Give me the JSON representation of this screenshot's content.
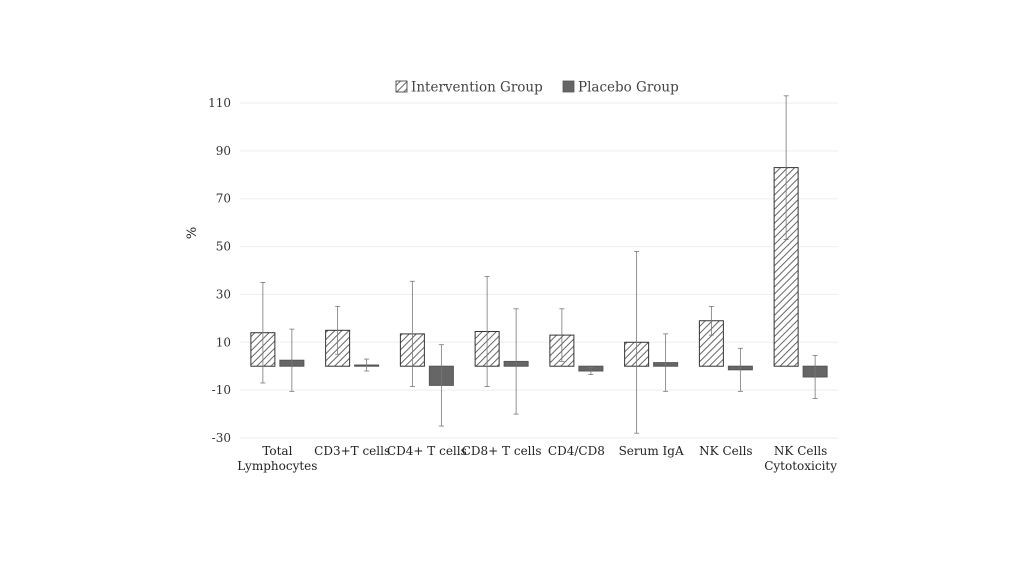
{
  "chart_data": {
    "type": "bar",
    "ylabel": "%",
    "ylim": [
      -30,
      110
    ],
    "yticks": [
      110,
      90,
      70,
      50,
      30,
      10,
      -10,
      -30
    ],
    "grid": true,
    "legend_position": "top",
    "categories": [
      [
        "Total",
        "Lymphocytes"
      ],
      [
        "CD3+T cells"
      ],
      [
        "CD4+ T cells"
      ],
      [
        "CD8+ T cells"
      ],
      [
        "CD4/CD8"
      ],
      [
        "Serum IgA"
      ],
      [
        "NK Cells"
      ],
      [
        "NK Cells",
        "Cytotoxicity"
      ]
    ],
    "series": [
      {
        "name": "Intervention Group",
        "pattern": "hatched",
        "color": "#555555",
        "values": [
          14,
          15,
          13.5,
          14.5,
          13,
          10,
          19,
          83
        ],
        "error": [
          21,
          10,
          22,
          23,
          11,
          38,
          6,
          30
        ]
      },
      {
        "name": "Placebo Group",
        "pattern": "solid",
        "color": "#666666",
        "values": [
          2.5,
          0.5,
          -8,
          2,
          -2,
          1.5,
          -1.5,
          -4.5
        ],
        "error": [
          13,
          2.5,
          17,
          22,
          1.5,
          12,
          9,
          9
        ]
      }
    ]
  }
}
